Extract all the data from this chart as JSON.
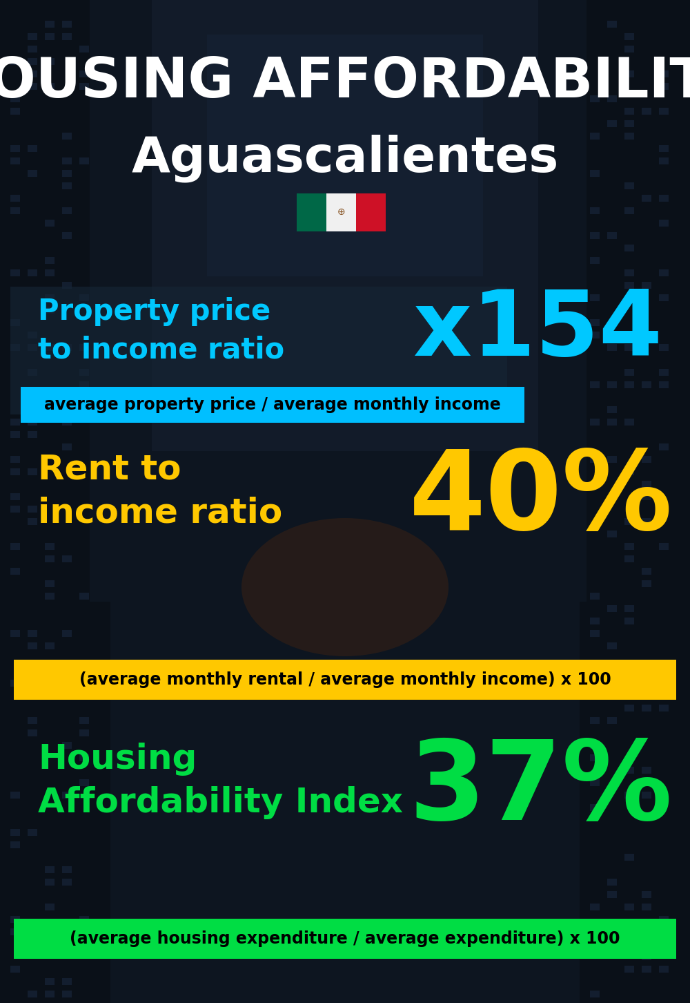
{
  "title_line1": "HOUSING AFFORDABILITY",
  "title_line2": "Aguascalientes",
  "bg_color": "#0d1520",
  "section1_label": "Property price\nto income ratio",
  "section1_value": "x154",
  "section1_label_color": "#00c8ff",
  "section1_value_color": "#00c8ff",
  "section1_subtitle": "average property price / average monthly income",
  "section1_subtitle_bg": "#00bfff",
  "section1_subtitle_color": "#000000",
  "section2_label": "Rent to\nincome ratio",
  "section2_value": "40%",
  "section2_label_color": "#ffc800",
  "section2_value_color": "#ffc800",
  "section2_subtitle": "(average monthly rental / average monthly income) x 100",
  "section2_subtitle_bg": "#ffc800",
  "section2_subtitle_color": "#000000",
  "section3_label": "Housing\nAffordability Index",
  "section3_value": "37%",
  "section3_label_color": "#00dd44",
  "section3_value_color": "#00dd44",
  "section3_subtitle": "(average housing expenditure / average expenditure) x 100",
  "section3_subtitle_bg": "#00dd44",
  "section3_subtitle_color": "#000000",
  "title_color": "#ffffff",
  "panel1_color": "#1a2e40",
  "flag_green": "#006847",
  "flag_white": "#f0f0f0",
  "flag_red": "#ce1126",
  "flag_emblem_color": "#8B5A2B"
}
